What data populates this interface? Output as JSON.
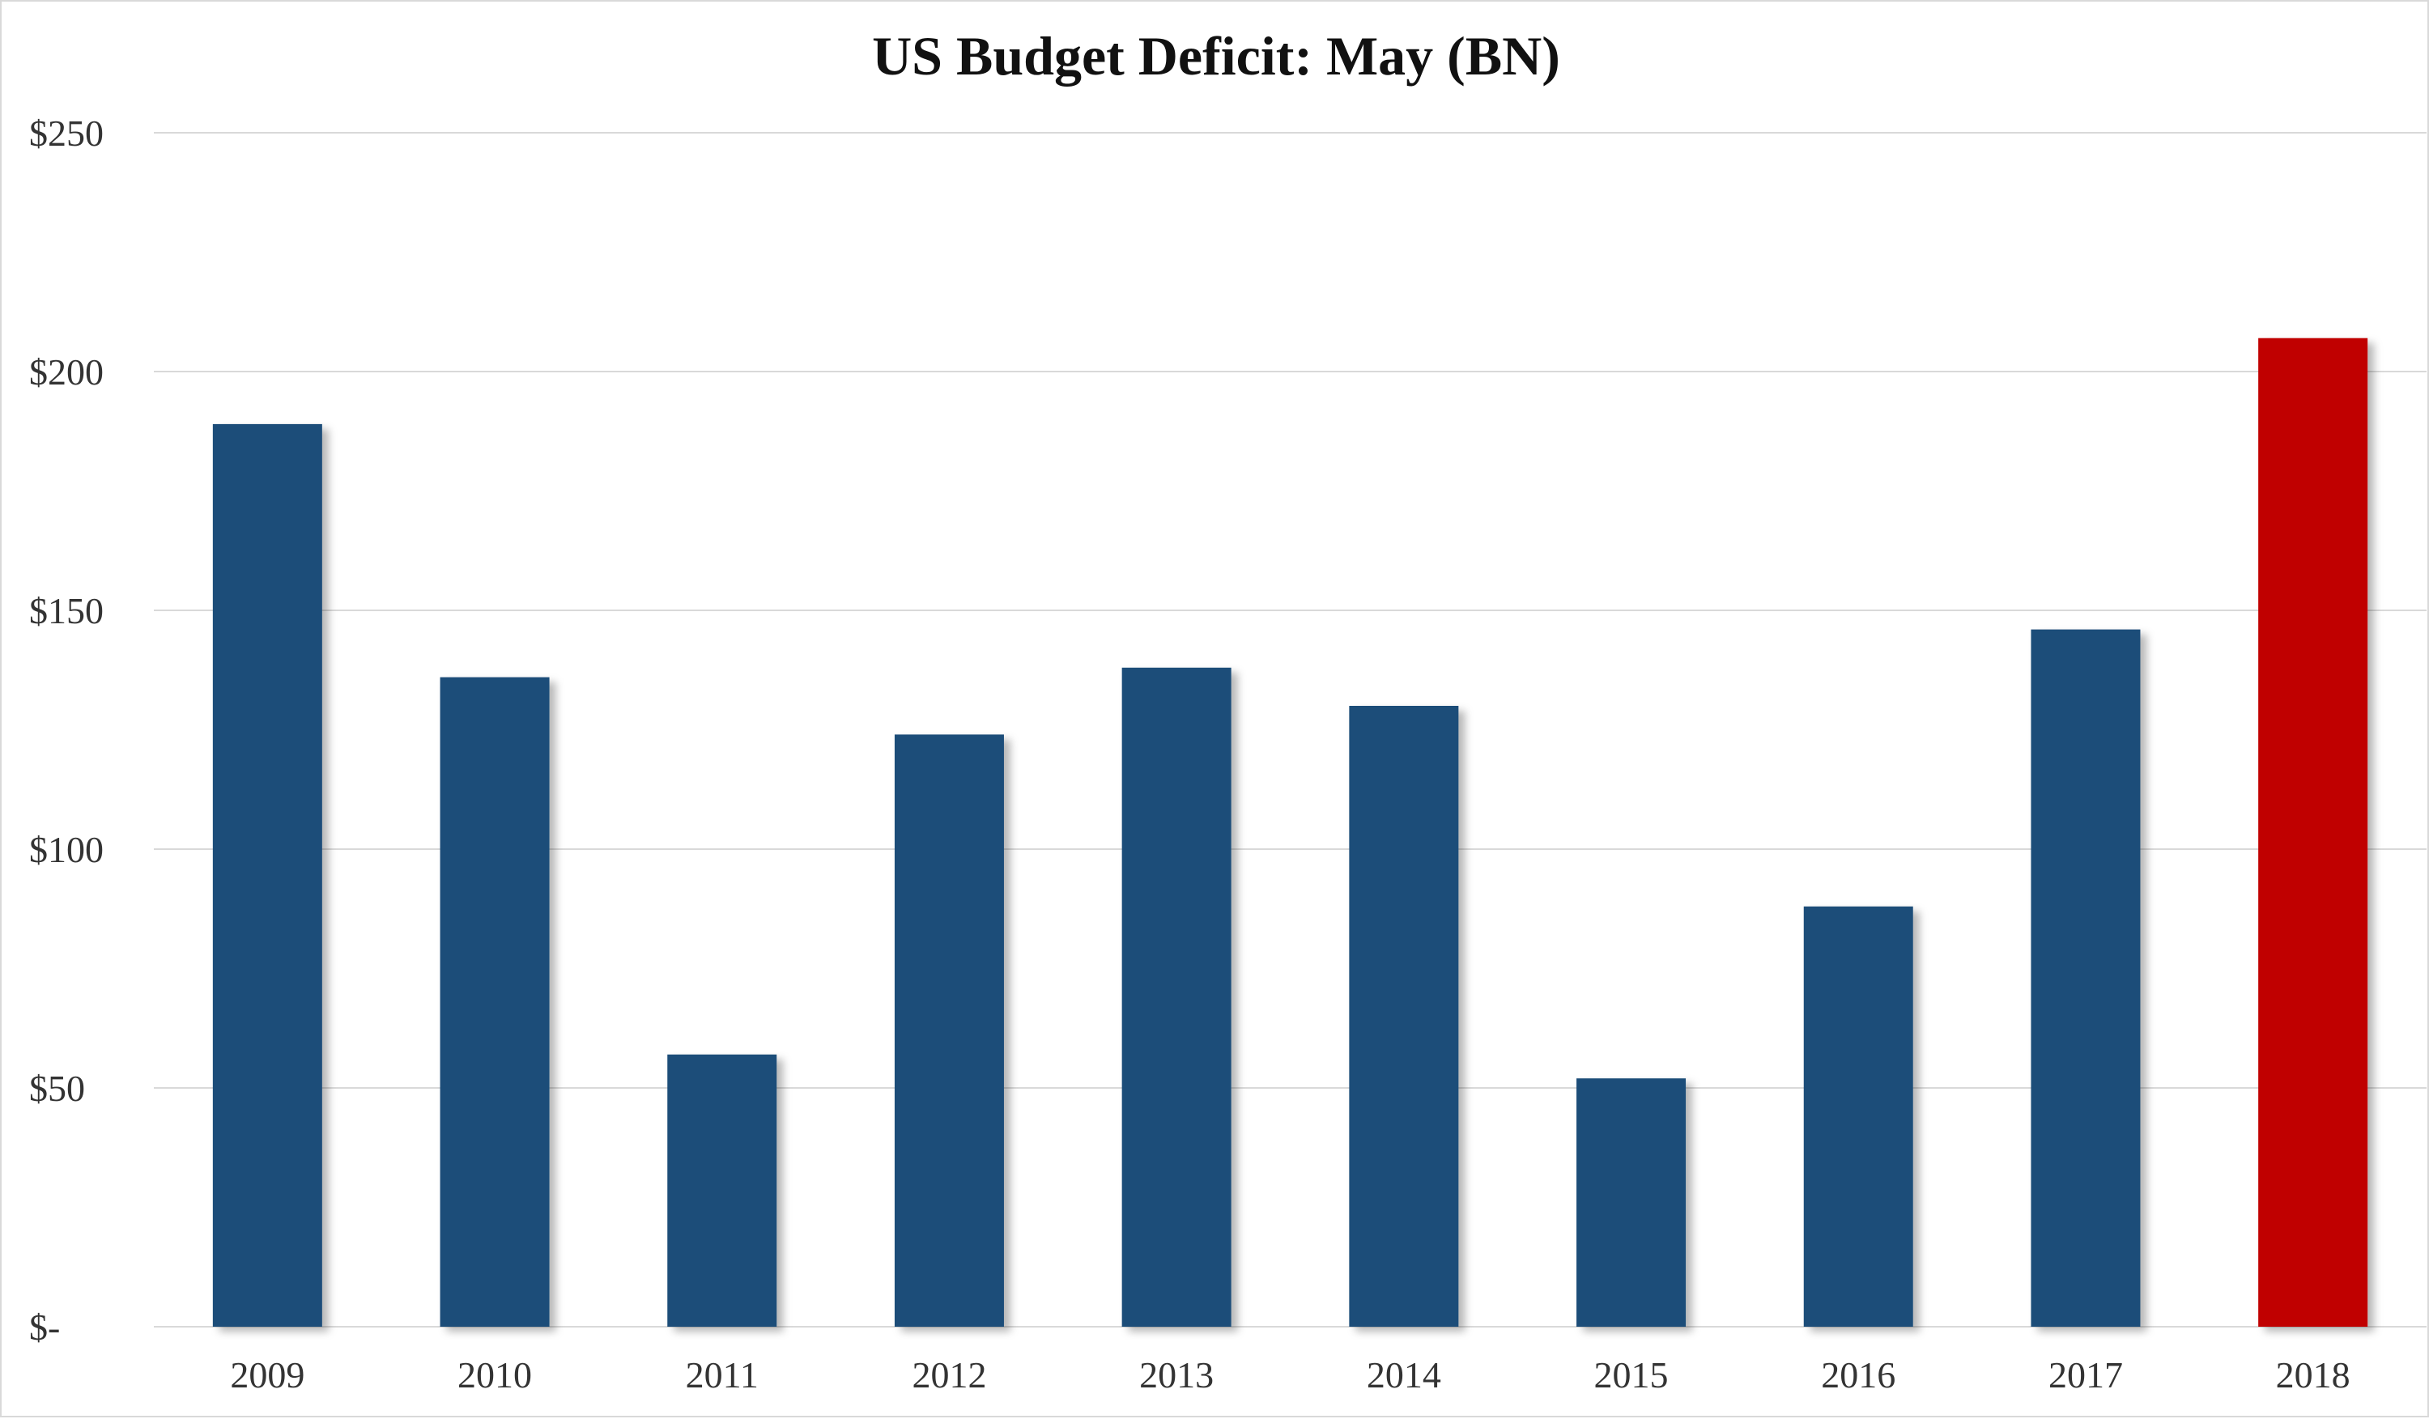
{
  "chart_data": {
    "type": "bar",
    "title": "US Budget Deficit: May (BN)",
    "xlabel": "",
    "ylabel": "",
    "categories": [
      "2009",
      "2010",
      "2011",
      "2012",
      "2013",
      "2014",
      "2015",
      "2016",
      "2017",
      "2018"
    ],
    "values": [
      189,
      136,
      57,
      124,
      138,
      130,
      52,
      88,
      146,
      207
    ],
    "highlight": {
      "category": "2018",
      "color": "#c00000"
    },
    "bar_color": "#1f4e79",
    "ylim": [
      0,
      250
    ],
    "yticks": [
      0,
      50,
      100,
      150,
      200,
      250
    ],
    "ytick_labels": [
      "$-",
      "$50",
      "$100",
      "$150",
      "$200",
      "$250"
    ],
    "grid": true,
    "legend": "none"
  }
}
